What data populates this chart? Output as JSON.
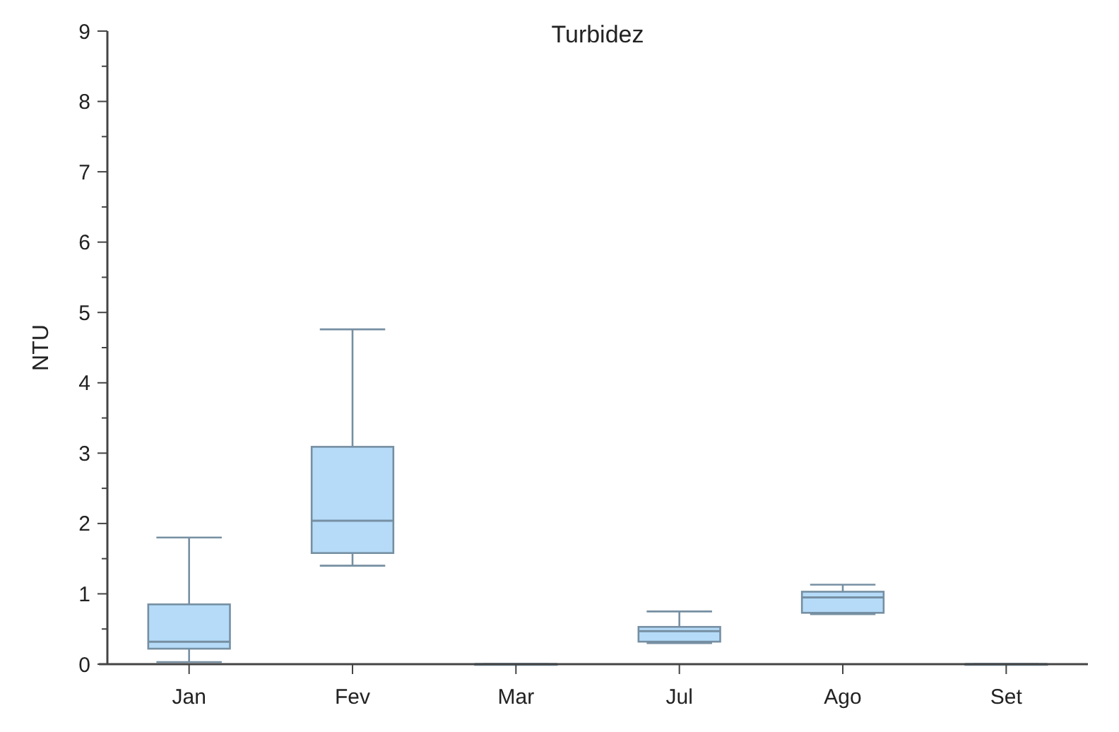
{
  "chart_data": {
    "type": "box",
    "title": "Turbidez",
    "ylabel": "NTU",
    "categories": [
      "Jan",
      "Fev",
      "Mar",
      "Jul",
      "Ago",
      "Set"
    ],
    "boxes": [
      {
        "low": 0.03,
        "q1": 0.22,
        "median": 0.32,
        "q3": 0.85,
        "high": 1.8
      },
      {
        "low": 1.4,
        "q1": 1.58,
        "median": 2.04,
        "q3": 3.09,
        "high": 4.76
      },
      {
        "low": 0,
        "q1": 0,
        "median": 0,
        "q3": 0,
        "high": 0
      },
      {
        "low": 0.3,
        "q1": 0.32,
        "median": 0.47,
        "q3": 0.53,
        "high": 0.75
      },
      {
        "low": 0.71,
        "q1": 0.73,
        "median": 0.95,
        "q3": 1.03,
        "high": 1.13
      },
      {
        "low": 0,
        "q1": 0,
        "median": 0,
        "q3": 0,
        "high": 0
      }
    ],
    "color": "#b5dbf8",
    "ylim": [
      0,
      9
    ],
    "yticks": [
      0,
      {
        "value": 0.5,
        "label": null
      },
      1,
      {
        "value": 1.5,
        "label": null
      },
      2,
      {
        "value": 2.5,
        "label": null
      },
      3,
      {
        "value": 3.5,
        "label": null
      },
      4,
      {
        "value": 4.5,
        "label": null
      },
      5,
      {
        "value": 5.5,
        "label": null
      },
      6,
      {
        "value": 6.5,
        "label": null
      },
      7,
      {
        "value": 7.5,
        "label": null
      },
      8,
      {
        "value": 8.5,
        "label": null
      },
      9
    ],
    "grid": false
  }
}
